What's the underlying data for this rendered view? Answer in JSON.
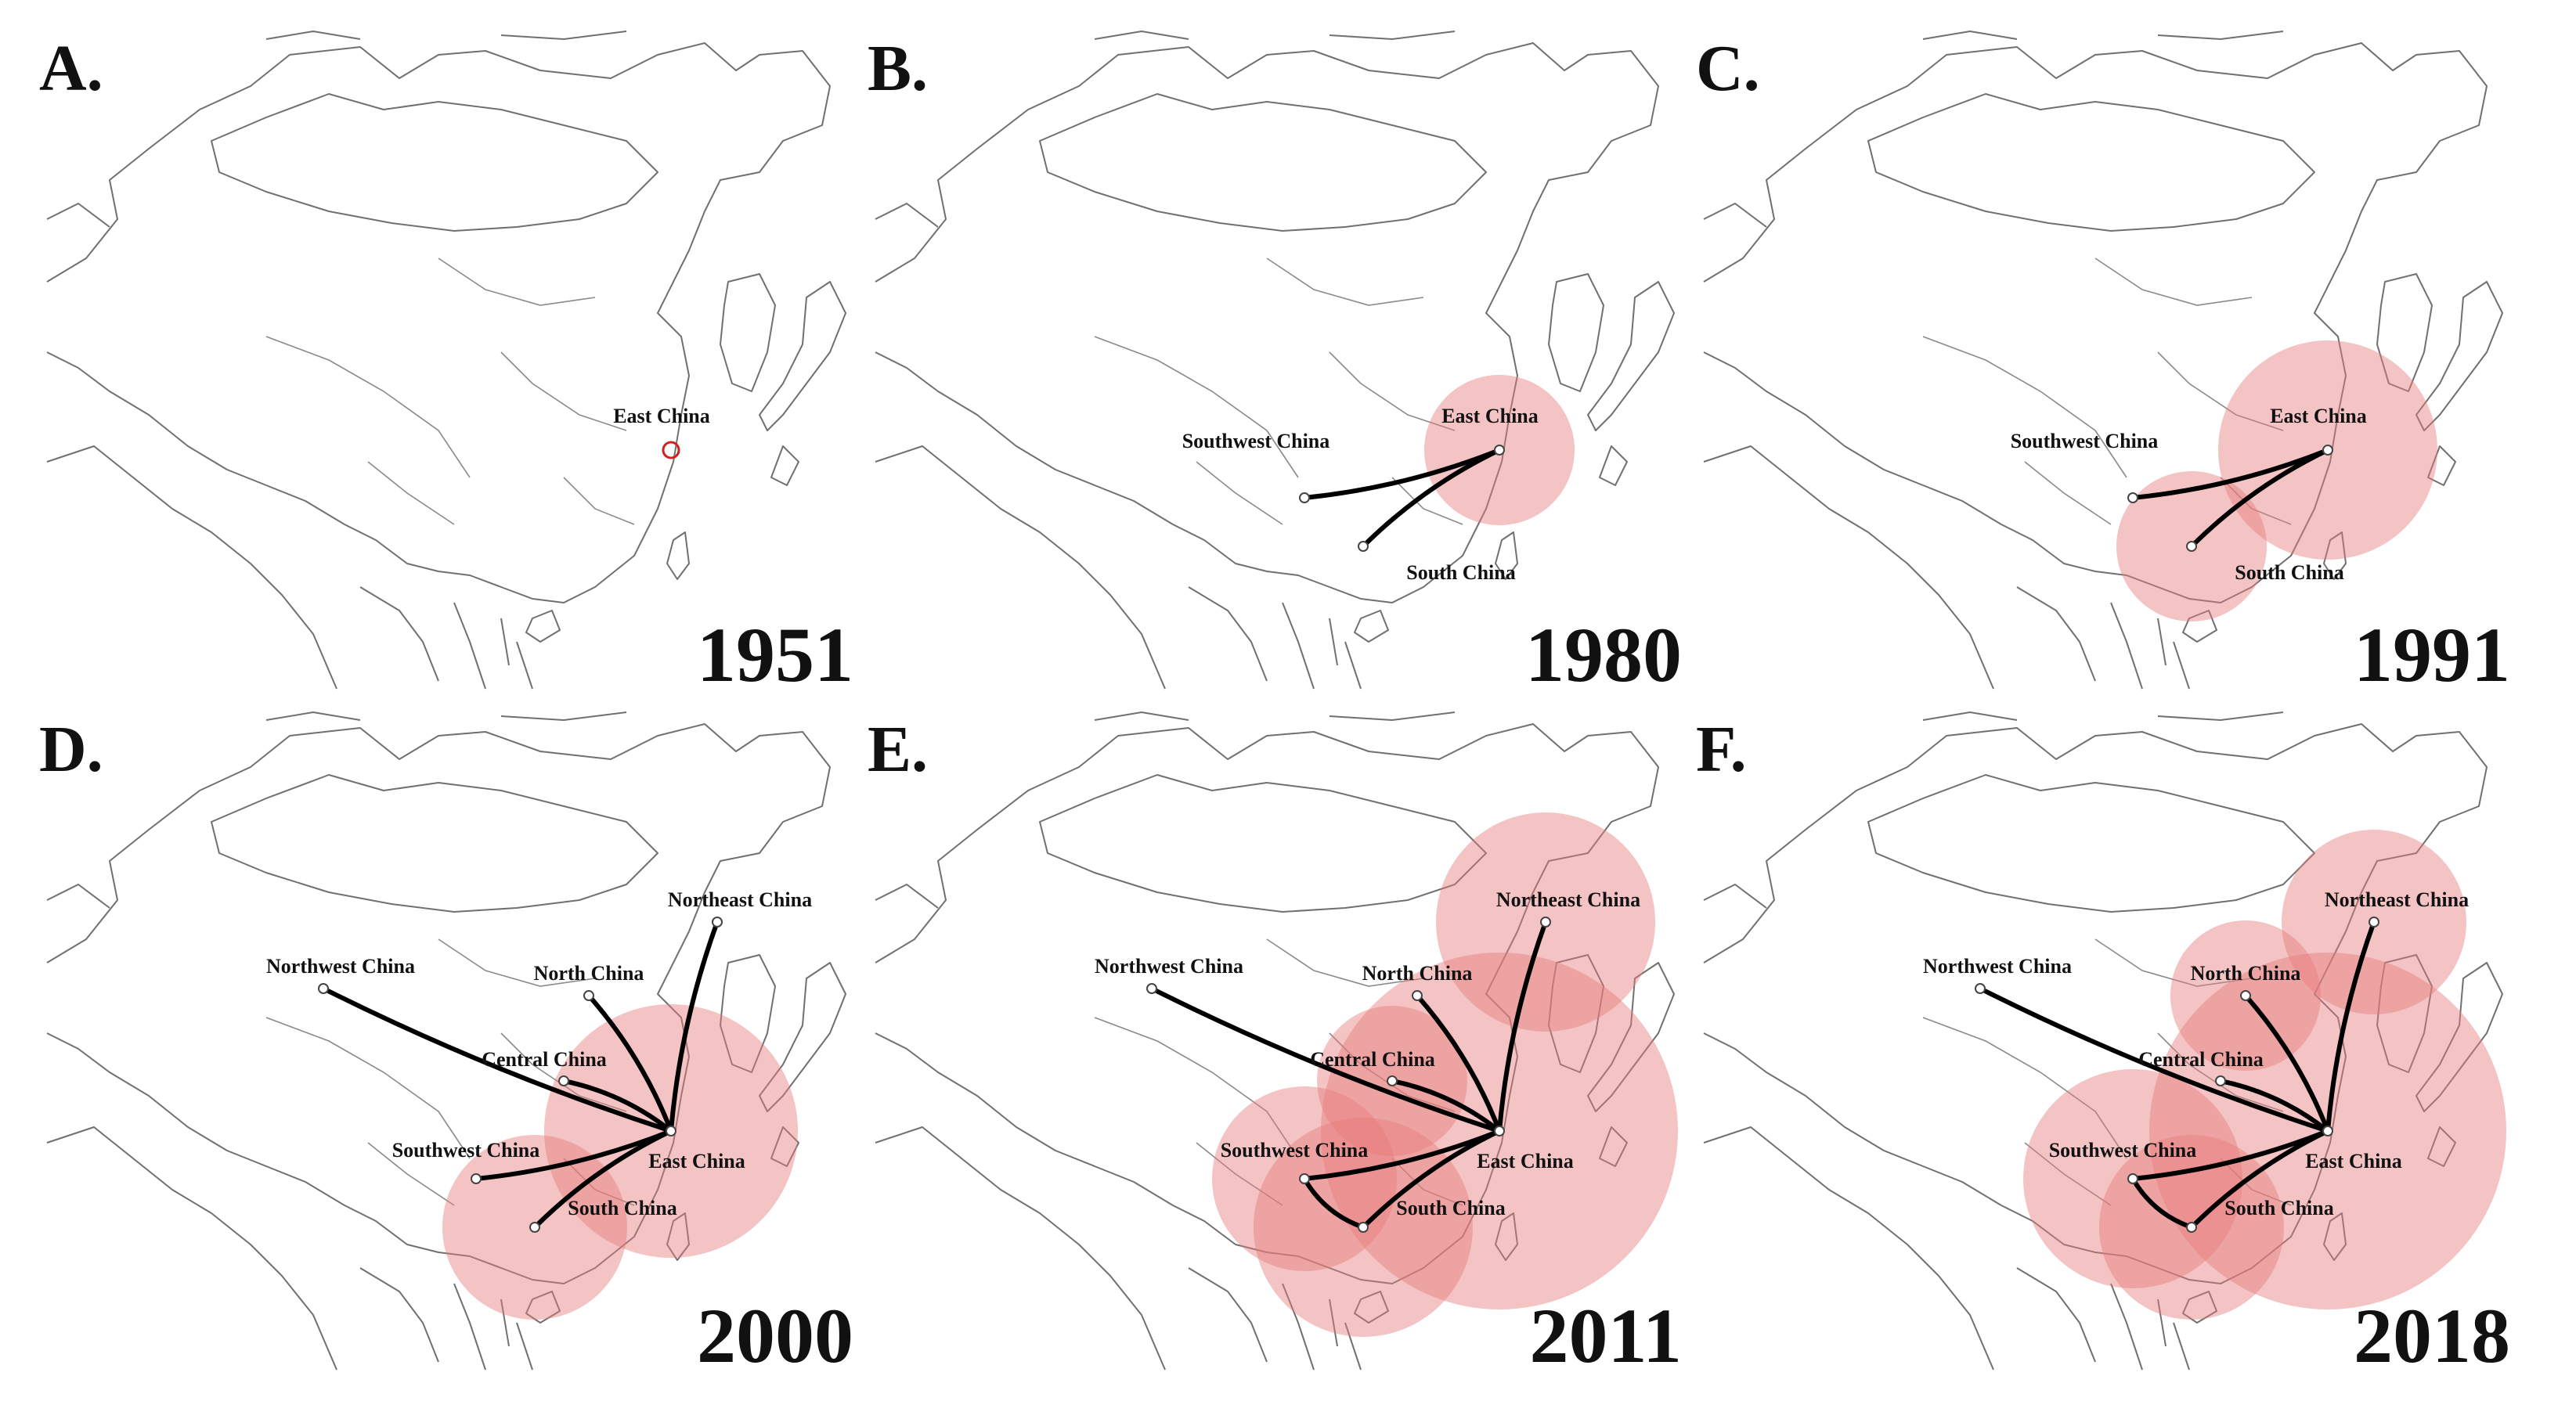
{
  "panels": [
    {
      "letter": "A.",
      "year": "1951",
      "regions": [
        {
          "name": "East China",
          "circle": "small-red",
          "weight": 1
        }
      ],
      "flows": []
    },
    {
      "letter": "B.",
      "year": "1980",
      "regions": [
        {
          "name": "East China",
          "weight": 3
        },
        {
          "name": "Southwest China",
          "weight": 0
        },
        {
          "name": "South China",
          "weight": 0
        }
      ],
      "flows": [
        [
          "Southwest China",
          "East China"
        ],
        [
          "South China",
          "East China"
        ]
      ]
    },
    {
      "letter": "C.",
      "year": "1991",
      "regions": [
        {
          "name": "East China",
          "weight": 5
        },
        {
          "name": "Southwest China",
          "weight": 0
        },
        {
          "name": "South China",
          "weight": 3
        }
      ],
      "flows": [
        [
          "Southwest China",
          "East China"
        ],
        [
          "South China",
          "East China"
        ]
      ]
    },
    {
      "letter": "D.",
      "year": "2000",
      "regions": [
        {
          "name": "Northeast China",
          "weight": 0
        },
        {
          "name": "North China",
          "weight": 0
        },
        {
          "name": "Northwest China",
          "weight": 0
        },
        {
          "name": "Central China",
          "weight": 0
        },
        {
          "name": "Southwest China",
          "weight": 0
        },
        {
          "name": "East China",
          "weight": 6
        },
        {
          "name": "South China",
          "weight": 4
        }
      ],
      "flows": [
        [
          "Northeast China",
          "East China"
        ],
        [
          "North China",
          "East China"
        ],
        [
          "Northwest China",
          "East China"
        ],
        [
          "Central China",
          "East China"
        ],
        [
          "Southwest China",
          "East China"
        ],
        [
          "South China",
          "East China"
        ]
      ]
    },
    {
      "letter": "E.",
      "year": "2011",
      "regions": [
        {
          "name": "Northeast China",
          "weight": 5
        },
        {
          "name": "North China",
          "weight": 0
        },
        {
          "name": "Northwest China",
          "weight": 0
        },
        {
          "name": "Central China",
          "weight": 3
        },
        {
          "name": "Southwest China",
          "weight": 4
        },
        {
          "name": "East China",
          "weight": 9
        },
        {
          "name": "South China",
          "weight": 5
        }
      ],
      "flows": [
        [
          "Northeast China",
          "East China"
        ],
        [
          "North China",
          "East China"
        ],
        [
          "Northwest China",
          "East China"
        ],
        [
          "Central China",
          "East China"
        ],
        [
          "Southwest China",
          "East China"
        ],
        [
          "South China",
          "East China"
        ],
        [
          "Southwest China",
          "South China"
        ]
      ]
    },
    {
      "letter": "F.",
      "year": "2018",
      "regions": [
        {
          "name": "Northeast China",
          "weight": 4
        },
        {
          "name": "North China",
          "weight": 3
        },
        {
          "name": "Northwest China",
          "weight": 0
        },
        {
          "name": "Central China",
          "weight": 0
        },
        {
          "name": "Southwest China",
          "weight": 5
        },
        {
          "name": "East China",
          "weight": 9
        },
        {
          "name": "South China",
          "weight": 4
        }
      ],
      "flows": [
        [
          "Northeast China",
          "East China"
        ],
        [
          "North China",
          "East China"
        ],
        [
          "Northwest China",
          "East China"
        ],
        [
          "Central China",
          "East China"
        ],
        [
          "Southwest China",
          "East China"
        ],
        [
          "South China",
          "East China"
        ],
        [
          "Southwest China",
          "South China"
        ]
      ]
    }
  ],
  "colors": {
    "circle_fill": "#e67c7c",
    "small_circle_stroke": "#d02020",
    "flow": "#000000",
    "border": "#707070"
  }
}
